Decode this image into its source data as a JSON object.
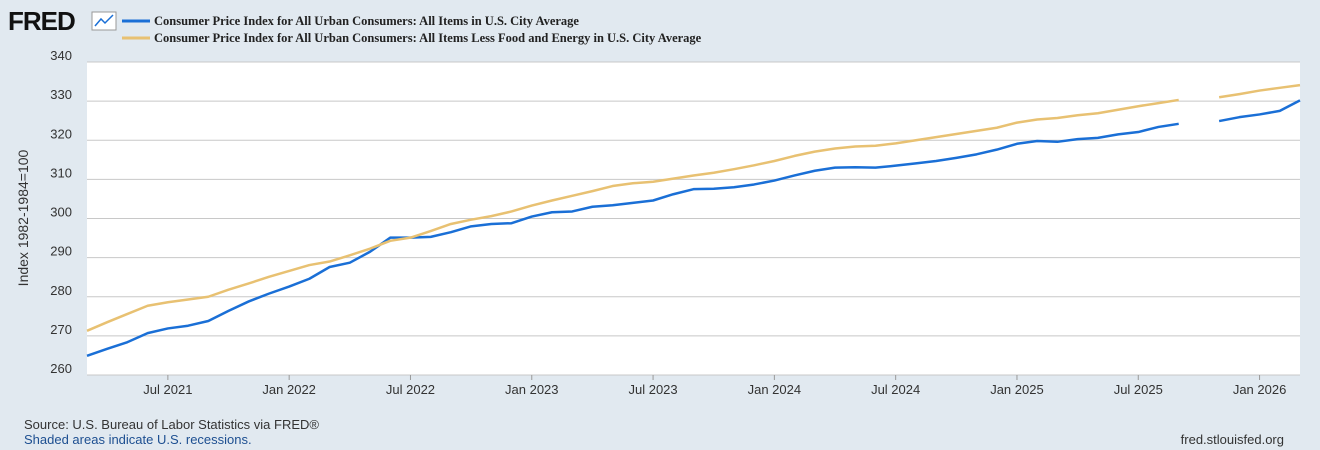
{
  "brand": "FRED",
  "chart_data": {
    "type": "line",
    "y_label": "Index 1982-1984=100",
    "source": "Source: U.S. Bureau of Labor Statistics via FRED®",
    "note": "Shaded areas indicate U.S. recessions.",
    "site": "fred.stlouisfed.org",
    "x": [
      "2021-03",
      "2021-04",
      "2021-05",
      "2021-06",
      "2021-07",
      "2021-08",
      "2021-09",
      "2021-10",
      "2021-11",
      "2021-12",
      "2022-01",
      "2022-02",
      "2022-03",
      "2022-04",
      "2022-05",
      "2022-06",
      "2022-07",
      "2022-08",
      "2022-09",
      "2022-10",
      "2022-11",
      "2022-12",
      "2023-01",
      "2023-02",
      "2023-03",
      "2023-04",
      "2023-05",
      "2023-06",
      "2023-07",
      "2023-08",
      "2023-09",
      "2023-10",
      "2023-11",
      "2023-12",
      "2024-01",
      "2024-02",
      "2024-03",
      "2024-04",
      "2024-05",
      "2024-06",
      "2024-07",
      "2024-08",
      "2024-09",
      "2024-10",
      "2024-11",
      "2024-12",
      "2025-01",
      "2025-02",
      "2025-03",
      "2025-04",
      "2025-05",
      "2025-06",
      "2025-07",
      "2025-08",
      "2025-09",
      "2025-10",
      "2025-11",
      "2025-12",
      "2026-01",
      "2026-02",
      "2026-03"
    ],
    "series": [
      {
        "name": "Consumer Price Index for All Urban Consumers: All Items in U.S. City Average",
        "color": "#1a6fd6",
        "values": [
          264.9,
          266.7,
          268.4,
          270.7,
          271.9,
          272.6,
          273.8,
          276.4,
          278.8,
          280.8,
          282.6,
          284.6,
          287.6,
          288.7,
          291.5,
          295.1,
          295.1,
          295.3,
          296.5,
          298.0,
          298.6,
          298.8,
          300.5,
          301.6,
          301.8,
          303.0,
          303.4,
          304.0,
          304.6,
          306.2,
          307.5,
          307.6,
          308.0,
          308.7,
          309.7,
          311.0,
          312.2,
          313.0,
          313.1,
          313.0,
          313.5,
          314.1,
          314.7,
          315.5,
          316.4,
          317.6,
          319.1,
          319.8,
          319.6,
          320.3,
          320.6,
          321.5,
          322.1,
          323.4,
          324.2,
          null,
          324.9,
          325.9,
          326.6,
          327.5,
          330.2
        ]
      },
      {
        "name": "Consumer Price Index for All Urban Consumers: All Items Less Food and Energy in U.S. City Average",
        "color": "#e8c172",
        "values": [
          271.3,
          273.5,
          275.6,
          277.7,
          278.6,
          279.3,
          280.0,
          281.8,
          283.4,
          285.1,
          286.6,
          288.1,
          289.0,
          290.6,
          292.3,
          294.3,
          295.1,
          296.8,
          298.6,
          299.7,
          300.6,
          301.8,
          303.3,
          304.6,
          305.8,
          307.0,
          308.3,
          309.0,
          309.4,
          310.2,
          311.0,
          311.7,
          312.6,
          313.6,
          314.7,
          316.0,
          317.1,
          317.9,
          318.4,
          318.6,
          319.2,
          320.0,
          320.8,
          321.6,
          322.4,
          323.2,
          324.5,
          325.3,
          325.7,
          326.4,
          326.9,
          327.8,
          328.7,
          329.5,
          330.3,
          null,
          331.0,
          331.8,
          332.7,
          333.4,
          334.1
        ]
      }
    ],
    "xlim": [
      "2021-03",
      "2026-03"
    ],
    "xticks": [
      {
        "value": "2021-07",
        "label": "Jul 2021"
      },
      {
        "value": "2022-01",
        "label": "Jan 2022"
      },
      {
        "value": "2022-07",
        "label": "Jul 2022"
      },
      {
        "value": "2023-01",
        "label": "Jan 2023"
      },
      {
        "value": "2023-07",
        "label": "Jul 2023"
      },
      {
        "value": "2024-01",
        "label": "Jan 2024"
      },
      {
        "value": "2024-07",
        "label": "Jul 2024"
      },
      {
        "value": "2025-01",
        "label": "Jan 2025"
      },
      {
        "value": "2025-07",
        "label": "Jul 2025"
      },
      {
        "value": "2026-01",
        "label": "Jan 2026"
      }
    ],
    "ylim": [
      260,
      340
    ],
    "yticks": [
      260,
      270,
      280,
      290,
      300,
      310,
      320,
      330,
      340
    ],
    "grid": true
  }
}
